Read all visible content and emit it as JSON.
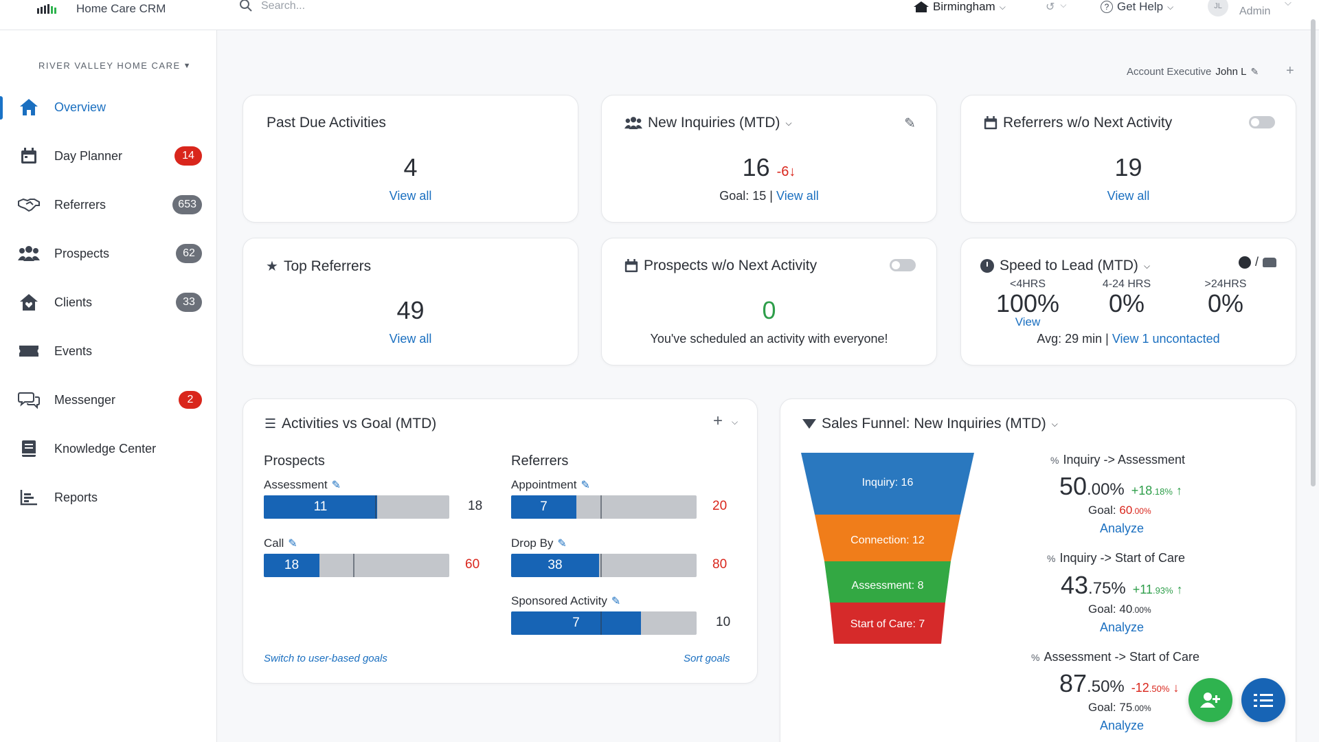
{
  "topbar": {
    "app_title": "Home Care CRM",
    "search_placeholder": "Search...",
    "location": "Birmingham",
    "help": "Get Help",
    "user_initials": "JL",
    "user_role": "Admin"
  },
  "sidebar": {
    "org_name": "RIVER VALLEY HOME CARE",
    "items": [
      {
        "label": "Overview",
        "badge": ""
      },
      {
        "label": "Day Planner",
        "badge": "14"
      },
      {
        "label": "Referrers",
        "badge": "653"
      },
      {
        "label": "Prospects",
        "badge": "62"
      },
      {
        "label": "Clients",
        "badge": "33"
      },
      {
        "label": "Events",
        "badge": ""
      },
      {
        "label": "Messenger",
        "badge": "2"
      },
      {
        "label": "Knowledge Center",
        "badge": ""
      },
      {
        "label": "Reports",
        "badge": ""
      }
    ]
  },
  "account": {
    "label": "Account Executive",
    "name": "John L"
  },
  "cards": {
    "past_due": {
      "title": "Past Due Activities",
      "value": "4",
      "link": "View all"
    },
    "new_inquiries": {
      "title": "New Inquiries (MTD)",
      "value": "16",
      "delta": "-6",
      "goal": "Goal: 15 |",
      "link": "View all"
    },
    "referrers_no_next": {
      "title": "Referrers w/o Next Activity",
      "value": "19",
      "link": "View all"
    },
    "top_referrers": {
      "title": "Top Referrers",
      "value": "49",
      "link": "View all"
    },
    "prospects_no_next": {
      "title": "Prospects w/o Next Activity",
      "value": "0",
      "message": "You've scheduled an activity with everyone!"
    },
    "speed_to_lead": {
      "title": "Speed to Lead (MTD)",
      "cols": [
        {
          "head": "<4HRS",
          "value": "100%",
          "link": "View"
        },
        {
          "head": "4-24 HRS",
          "value": "0%"
        },
        {
          "head": ">24HRS",
          "value": "0%"
        }
      ],
      "avg": "Avg: 29 min |",
      "link": "View 1 uncontacted"
    }
  },
  "activities": {
    "title": "Activities vs Goal (MTD)",
    "prospects_heading": "Prospects",
    "referrers_heading": "Referrers",
    "bars": [
      {
        "label": "Assessment",
        "value": 11,
        "goal": "18",
        "fill": 0.61,
        "goal_red": false
      },
      {
        "label": "Call",
        "value": 18,
        "goal": "60",
        "fill": 0.3,
        "goal_red": true
      },
      {
        "label": "Appointment",
        "value": 7,
        "goal": "20",
        "fill": 0.35,
        "goal_red": true
      },
      {
        "label": "Drop By",
        "value": 38,
        "goal": "80",
        "fill": 0.475,
        "goal_red": true
      },
      {
        "label": "Sponsored Activity",
        "value": 7,
        "goal": "10",
        "fill": 0.7,
        "goal_red": false
      }
    ],
    "switch_link": "Switch to user-based goals",
    "sort_link": "Sort goals"
  },
  "funnel": {
    "title": "Sales Funnel: New Inquiries (MTD)",
    "stages": [
      {
        "label": "Inquiry: 16",
        "color": "#2a78bf"
      },
      {
        "label": "Connection: 12",
        "color": "#f07d1a"
      },
      {
        "label": "Assessment: 8",
        "color": "#33a843"
      },
      {
        "label": "Start of Care: 7",
        "color": "#d62a2a"
      }
    ],
    "metrics": [
      {
        "title": "Inquiry -> Assessment",
        "int": "50",
        "dec": ".00%",
        "delta": "+18",
        "delta_dec": ".18%",
        "arrow": "↑",
        "dir": "up",
        "goal_label": "Goal:",
        "goal_int": "60",
        "goal_dec": ".00%",
        "goal_red": true,
        "analyze": "Analyze"
      },
      {
        "title": "Inquiry -> Start of Care",
        "int": "43",
        "dec": ".75%",
        "delta": "+11",
        "delta_dec": ".93%",
        "arrow": "↑",
        "dir": "up",
        "goal_label": "Goal:",
        "goal_int": "40",
        "goal_dec": ".00%",
        "goal_red": false,
        "analyze": "Analyze"
      },
      {
        "title": "Assessment -> Start of Care",
        "int": "87",
        "dec": ".50%",
        "delta": "-12",
        "delta_dec": ".50%",
        "arrow": "↓",
        "dir": "down",
        "goal_label": "Goal:",
        "goal_int": "75",
        "goal_dec": ".00%",
        "goal_red": false,
        "analyze": "Analyze"
      }
    ]
  }
}
